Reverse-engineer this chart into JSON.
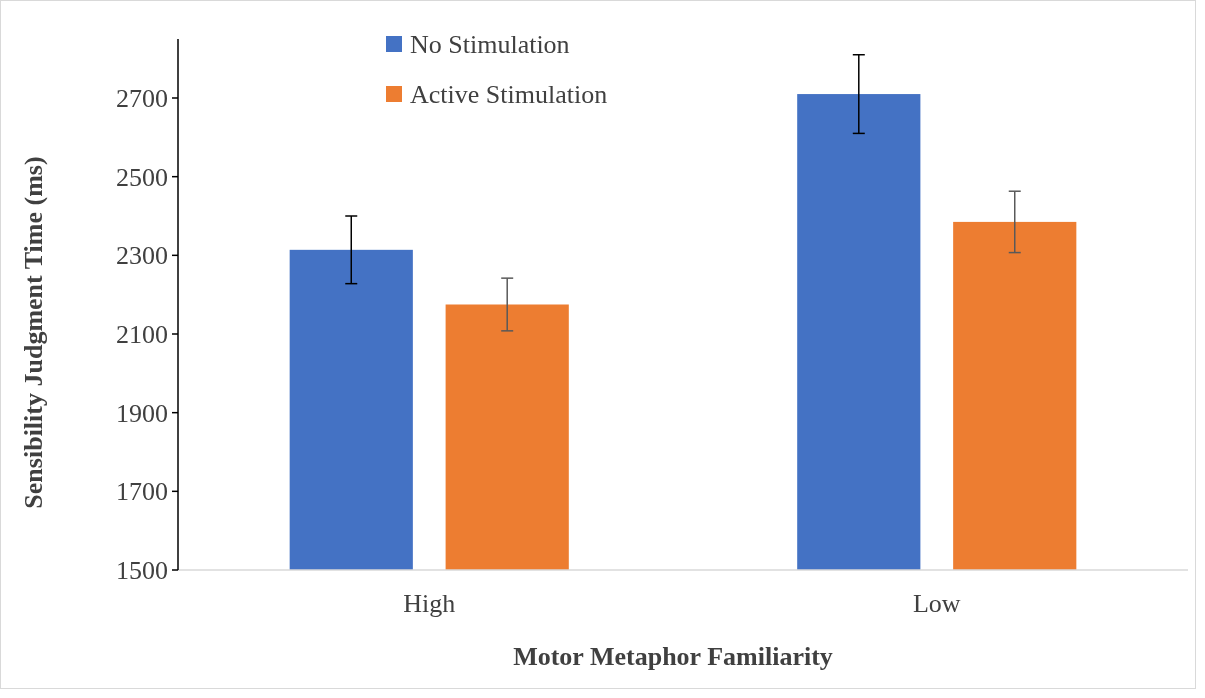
{
  "chart_data": {
    "type": "bar",
    "xlabel": "Motor Metaphor Familiarity",
    "ylabel": "Sensibility Judgment Time (ms)",
    "categories": [
      "High",
      "Low"
    ],
    "series": [
      {
        "name": "No Stimulation",
        "color": "#4472c4",
        "values": [
          2314,
          2710
        ],
        "errors": [
          86,
          100
        ]
      },
      {
        "name": "Active Stimulation",
        "color": "#ed7d31",
        "values": [
          2175,
          2385
        ],
        "errors": [
          67,
          78
        ]
      }
    ],
    "ylim": [
      1500,
      2850
    ],
    "yticks": [
      1500,
      1700,
      1900,
      2100,
      2300,
      2500,
      2700
    ],
    "grid": false,
    "legend": "top"
  }
}
